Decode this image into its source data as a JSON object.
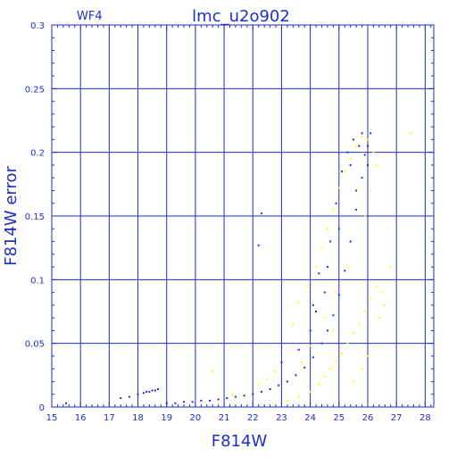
{
  "chart_data": {
    "type": "scatter",
    "title": "lmc_u2o902",
    "corner_label": "WF4",
    "xlabel": "F814W",
    "ylabel": "F814W error",
    "xlim": [
      15,
      28.3
    ],
    "ylim": [
      0,
      0.3
    ],
    "x_ticks": [
      15,
      16,
      17,
      18,
      19,
      20,
      21,
      22,
      23,
      24,
      25,
      26,
      27,
      28
    ],
    "y_ticks": [
      0,
      0.05,
      0.1,
      0.15,
      0.2,
      0.25,
      0.3
    ],
    "y_tick_labels": [
      "0",
      "0.05",
      "0.1",
      "0.15",
      "0.2",
      "0.25",
      "0.3"
    ],
    "grid": true,
    "colors": {
      "axis": "#1f2fc8",
      "blue_series": "#1f2fc8",
      "yellow_series": "#ffff00",
      "background": "#ffffff"
    },
    "series": [
      {
        "color": "#1f2fc8",
        "points": [
          [
            15.5,
            0.003
          ],
          [
            17.4,
            0.007
          ],
          [
            17.7,
            0.008
          ],
          [
            18.0,
            0.01
          ],
          [
            18.2,
            0.011
          ],
          [
            18.3,
            0.012
          ],
          [
            18.4,
            0.012
          ],
          [
            18.5,
            0.013
          ],
          [
            18.6,
            0.013
          ],
          [
            18.7,
            0.014
          ],
          [
            19.0,
            0.003
          ],
          [
            19.3,
            0.003
          ],
          [
            19.6,
            0.004
          ],
          [
            19.9,
            0.004
          ],
          [
            20.2,
            0.005
          ],
          [
            20.5,
            0.005
          ],
          [
            20.8,
            0.006
          ],
          [
            21.1,
            0.007
          ],
          [
            21.4,
            0.008
          ],
          [
            21.7,
            0.009
          ],
          [
            22.0,
            0.01
          ],
          [
            22.3,
            0.012
          ],
          [
            22.6,
            0.014
          ],
          [
            22.9,
            0.017
          ],
          [
            23.2,
            0.02
          ],
          [
            23.5,
            0.025
          ],
          [
            23.8,
            0.031
          ],
          [
            24.1,
            0.039
          ],
          [
            24.4,
            0.05
          ],
          [
            24.6,
            0.06
          ],
          [
            24.8,
            0.072
          ],
          [
            25.0,
            0.088
          ],
          [
            25.2,
            0.107
          ],
          [
            25.4,
            0.13
          ],
          [
            25.6,
            0.155
          ],
          [
            25.8,
            0.18
          ],
          [
            26.0,
            0.205
          ],
          [
            26.1,
            0.215
          ],
          [
            22.3,
            0.152
          ],
          [
            22.2,
            0.127
          ],
          [
            23.0,
            0.035
          ],
          [
            23.6,
            0.045
          ],
          [
            24.0,
            0.06
          ],
          [
            24.2,
            0.075
          ],
          [
            24.3,
            0.105
          ],
          [
            24.5,
            0.09
          ],
          [
            24.7,
            0.13
          ],
          [
            24.9,
            0.16
          ],
          [
            25.1,
            0.185
          ],
          [
            25.3,
            0.2
          ],
          [
            25.5,
            0.21
          ],
          [
            25.7,
            0.205
          ],
          [
            25.9,
            0.198
          ],
          [
            26.0,
            0.19
          ],
          [
            25.6,
            0.17
          ],
          [
            25.4,
            0.19
          ],
          [
            24.1,
            0.08
          ],
          [
            24.6,
            0.11
          ],
          [
            25.0,
            0.14
          ],
          [
            25.8,
            0.215
          ]
        ]
      },
      {
        "color": "#ffff00",
        "points": [
          [
            20.6,
            0.028
          ],
          [
            21.3,
            0.01
          ],
          [
            22.2,
            0.018
          ],
          [
            22.5,
            0.022
          ],
          [
            22.8,
            0.028
          ],
          [
            23.2,
            0.005
          ],
          [
            23.6,
            0.008
          ],
          [
            24.0,
            0.012
          ],
          [
            24.3,
            0.018
          ],
          [
            24.5,
            0.024
          ],
          [
            24.7,
            0.03
          ],
          [
            24.9,
            0.036
          ],
          [
            25.1,
            0.042
          ],
          [
            25.3,
            0.05
          ],
          [
            25.5,
            0.058
          ],
          [
            25.7,
            0.065
          ],
          [
            25.9,
            0.075
          ],
          [
            26.1,
            0.085
          ],
          [
            26.3,
            0.095
          ],
          [
            26.5,
            0.09
          ],
          [
            26.6,
            0.08
          ],
          [
            26.4,
            0.07
          ],
          [
            23.4,
            0.065
          ],
          [
            23.6,
            0.082
          ],
          [
            23.9,
            0.095
          ],
          [
            24.2,
            0.11
          ],
          [
            24.4,
            0.125
          ],
          [
            24.6,
            0.14
          ],
          [
            24.8,
            0.155
          ],
          [
            25.0,
            0.172
          ],
          [
            25.2,
            0.185
          ],
          [
            25.4,
            0.195
          ],
          [
            25.6,
            0.205
          ],
          [
            25.8,
            0.212
          ],
          [
            26.0,
            0.21
          ],
          [
            26.2,
            0.2
          ],
          [
            26.3,
            0.19
          ],
          [
            27.5,
            0.215
          ],
          [
            26.8,
            0.11
          ],
          [
            26.0,
            0.04
          ],
          [
            23.7,
            0.035
          ],
          [
            24.0,
            0.048
          ],
          [
            24.8,
            0.06
          ],
          [
            25.5,
            0.02
          ],
          [
            25.8,
            0.03
          ],
          [
            26.1,
            0.17
          ],
          [
            25.9,
            0.15
          ],
          [
            25.3,
            0.11
          ],
          [
            24.9,
            0.09
          ],
          [
            24.5,
            0.07
          ]
        ]
      }
    ]
  }
}
